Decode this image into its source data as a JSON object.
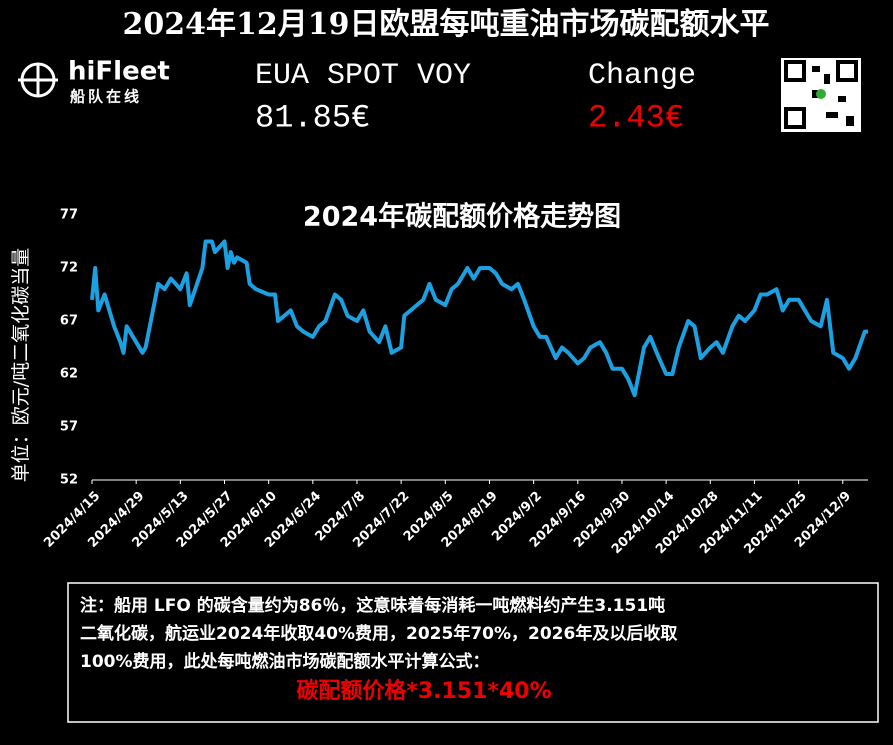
{
  "header": {
    "title": "2024年12月19日欧盟每吨重油市场碳配额水平",
    "logo_name": "hiFleet",
    "logo_subtitle": "船队在线",
    "spot_label": "EUA SPOT VOY",
    "spot_value": "81.85€",
    "change_label": "Change",
    "change_value": "2.43€"
  },
  "chart_data": {
    "type": "line",
    "title": "2024年碳配额价格走势图",
    "y_label": "单位：欧元/吨二氧化碳当量",
    "x": [
      "2024/4/15",
      "2024/4/16",
      "2024/4/17",
      "2024/4/19",
      "2024/4/22",
      "2024/4/24",
      "2024/4/25",
      "2024/4/26",
      "2024/4/29",
      "2024/5/1",
      "2024/5/2",
      "2024/5/6",
      "2024/5/8",
      "2024/5/10",
      "2024/5/13",
      "2024/5/15",
      "2024/5/16",
      "2024/5/20",
      "2024/5/21",
      "2024/5/23",
      "2024/5/24",
      "2024/5/27",
      "2024/5/28",
      "2024/5/29",
      "2024/5/30",
      "2024/5/31",
      "2024/6/3",
      "2024/6/4",
      "2024/6/6",
      "2024/6/10",
      "2024/6/12",
      "2024/6/13",
      "2024/6/17",
      "2024/6/19",
      "2024/6/21",
      "2024/6/24",
      "2024/6/26",
      "2024/6/28",
      "2024/7/1",
      "2024/7/3",
      "2024/7/5",
      "2024/7/8",
      "2024/7/10",
      "2024/7/12",
      "2024/7/15",
      "2024/7/17",
      "2024/7/19",
      "2024/7/22",
      "2024/7/23",
      "2024/7/25",
      "2024/7/29",
      "2024/7/31",
      "2024/8/2",
      "2024/8/5",
      "2024/8/7",
      "2024/8/9",
      "2024/8/12",
      "2024/8/14",
      "2024/8/16",
      "2024/8/19",
      "2024/8/21",
      "2024/8/23",
      "2024/8/26",
      "2024/8/28",
      "2024/8/30",
      "2024/9/2",
      "2024/9/4",
      "2024/9/6",
      "2024/9/9",
      "2024/9/11",
      "2024/9/13",
      "2024/9/16",
      "2024/9/18",
      "2024/9/20",
      "2024/9/23",
      "2024/9/25",
      "2024/9/27",
      "2024/9/30",
      "2024/10/2",
      "2024/10/4",
      "2024/10/7",
      "2024/10/9",
      "2024/10/11",
      "2024/10/14",
      "2024/10/16",
      "2024/10/18",
      "2024/10/21",
      "2024/10/23",
      "2024/10/25",
      "2024/10/28",
      "2024/10/30",
      "2024/11/1",
      "2024/11/4",
      "2024/11/6",
      "2024/11/8",
      "2024/11/11",
      "2024/11/13",
      "2024/11/15",
      "2024/11/18",
      "2024/11/20",
      "2024/11/22",
      "2024/11/25",
      "2024/11/27",
      "2024/11/29",
      "2024/12/2",
      "2024/12/4",
      "2024/12/6",
      "2024/12/9",
      "2024/12/11",
      "2024/12/13",
      "2024/12/16",
      "2024/12/17"
    ],
    "series": [
      {
        "name": "EUA",
        "color": "#1ba1e2",
        "values": [
          69,
          72,
          68,
          69.5,
          66.5,
          65,
          64,
          66.5,
          65,
          64,
          64.5,
          70.5,
          70,
          71,
          70,
          71.5,
          68.5,
          72,
          74.5,
          74.5,
          73.5,
          74.5,
          72,
          73.5,
          72.5,
          73,
          72.5,
          70.5,
          70,
          69.5,
          69.5,
          67,
          68,
          66.5,
          66,
          65.5,
          66.5,
          67,
          69.5,
          69,
          67.5,
          67,
          68,
          66,
          65,
          66.5,
          64,
          64.5,
          67.5,
          68,
          69,
          70.5,
          69,
          68.5,
          70,
          70.5,
          72,
          71,
          72,
          72,
          71.5,
          70.5,
          70,
          70.5,
          69,
          66.5,
          65.5,
          65.5,
          63.5,
          64.5,
          64,
          63,
          63.5,
          64.5,
          65,
          64,
          62.5,
          62.5,
          61.5,
          60,
          64.5,
          65.5,
          64,
          62,
          62,
          64.5,
          67,
          66.5,
          63.5,
          64.5,
          65,
          64,
          66.5,
          67.5,
          67,
          68,
          69.5,
          69.5,
          70,
          68,
          69,
          69,
          68,
          67,
          66.5,
          69,
          64,
          63.5,
          62.5,
          63.5,
          66,
          66
        ]
      }
    ],
    "xlim": [
      "2024/4/15",
      "2024/12/17"
    ],
    "xticks": [
      "2024/4/15",
      "2024/4/29",
      "2024/5/13",
      "2024/5/27",
      "2024/6/10",
      "2024/6/24",
      "2024/7/8",
      "2024/7/22",
      "2024/8/5",
      "2024/8/19",
      "2024/9/2",
      "2024/9/16",
      "2024/9/30",
      "2024/10/14",
      "2024/10/28",
      "2024/11/11",
      "2024/11/25",
      "2024/12/9"
    ],
    "ylim": [
      52,
      77
    ],
    "yticks": [
      52,
      57,
      62,
      67,
      72,
      77
    ]
  },
  "note": {
    "lines": [
      "注：船用 LFO 的碳含量约为86％，这意味着每消耗一吨燃料约产生3.151吨",
      "二氧化碳，航运业2024年收取40%费用，2025年70%，2026年及以后收取",
      "100%费用，此处每吨燃油市场碳配额水平计算公式："
    ],
    "formula": "碳配额价格*3.151*40%"
  }
}
